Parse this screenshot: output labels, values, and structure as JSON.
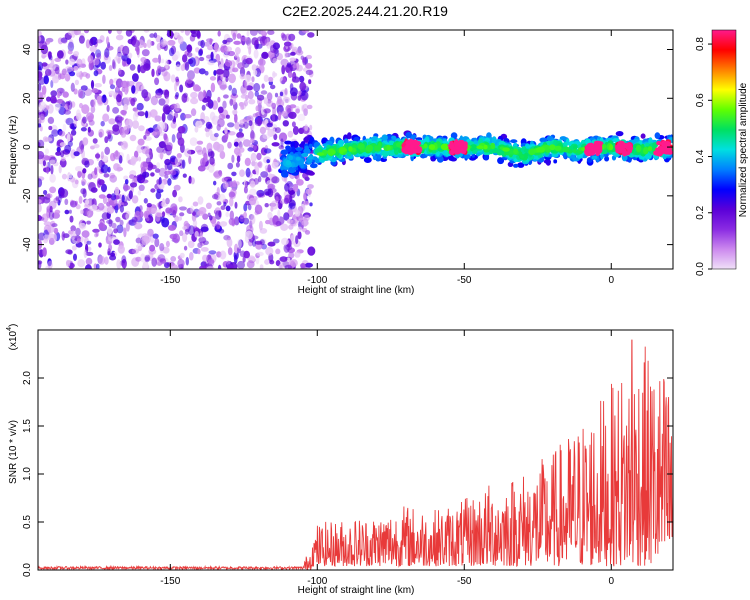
{
  "figure_title": "C2E2.2025.244.21.20.R19",
  "chart_data": [
    {
      "type": "heatmap",
      "title": "C2E2.2025.244.21.20.R19",
      "xlabel": "Height of straight line (km)",
      "ylabel": "Frequency (Hz)",
      "xlim": [
        -195,
        21
      ],
      "ylim": [
        -50,
        48
      ],
      "x_ticks": [
        -150,
        -100,
        -50,
        0
      ],
      "y_ticks": [
        -40,
        -20,
        0,
        20,
        40
      ],
      "colorbar": {
        "label": "Normalized spectral amplitude",
        "range": [
          0.0,
          0.85
        ],
        "ticks": [
          0.0,
          0.2,
          0.4,
          0.6,
          0.8
        ],
        "colormap": [
          "#f0e0f8",
          "#cc88ee",
          "#8a2be2",
          "#5a00d8",
          "#0000ff",
          "#0080ff",
          "#00e0e0",
          "#00e060",
          "#60ff00",
          "#ffff00",
          "#ff8000",
          "#ff0000",
          "#ff1a8c"
        ]
      },
      "description_values": {
        "noise_region_x_range": [
          -195,
          -105
        ],
        "signal_band_center_hz": [
          [
            -110,
            -6
          ],
          [
            -100,
            -3
          ],
          [
            -90,
            -1
          ],
          [
            -80,
            0
          ],
          [
            -70,
            0
          ],
          [
            -60,
            0
          ],
          [
            -50,
            0
          ],
          [
            -40,
            0
          ],
          [
            -30,
            -3
          ],
          [
            -20,
            0
          ],
          [
            -10,
            -1
          ],
          [
            0,
            0
          ],
          [
            10,
            -1
          ],
          [
            20,
            0
          ]
        ],
        "signal_band_halfwidth_hz": 4,
        "peak_amplitude_locations_km": [
          -68,
          -52,
          -6,
          4,
          18
        ]
      }
    },
    {
      "type": "line",
      "xlabel": "Height of straight line (km)",
      "ylabel": "SNR (10 * v/v)",
      "y_multiplier_label": "(x10",
      "y_multiplier_exp": "4",
      "xlim": [
        -195,
        21
      ],
      "ylim": [
        0,
        2.5
      ],
      "x_ticks": [
        -150,
        -100,
        -50,
        0
      ],
      "y_ticks": [
        0.0,
        0.5,
        1.0,
        1.5,
        2.0
      ],
      "y_tick_labels": [
        "0.0",
        "0.5",
        "1.0",
        "1.5",
        "2.0"
      ],
      "series": [
        {
          "name": "SNR",
          "color": "#e83a3a",
          "envelope_x": [
            -195,
            -105,
            -100,
            -90,
            -80,
            -70,
            -60,
            -50,
            -40,
            -30,
            -20,
            -10,
            0,
            10,
            20
          ],
          "envelope_ymax": [
            0.03,
            0.05,
            0.45,
            0.5,
            0.55,
            0.65,
            0.6,
            0.7,
            0.9,
            1.0,
            1.2,
            1.55,
            1.9,
            2.35,
            2.0
          ],
          "peak_point": [
            7,
            2.4
          ]
        }
      ]
    }
  ]
}
